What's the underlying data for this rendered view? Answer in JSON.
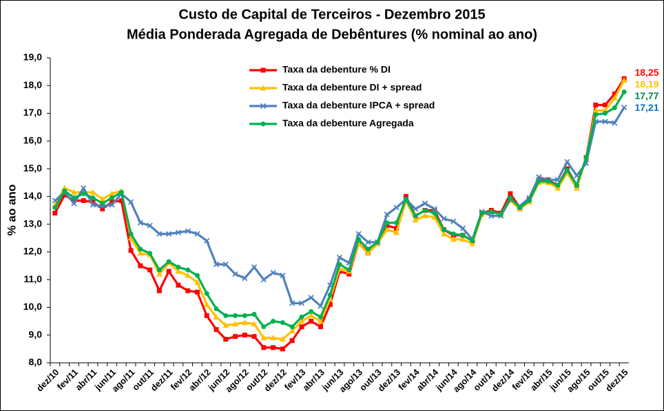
{
  "chart_data": {
    "type": "line",
    "title": "Custo de Capital de Terceiros - Dezembro 2015",
    "subtitle": "Média Ponderada Agregada de Debêntures (% nominal ao ano)",
    "y_label": "% ao ano",
    "categories": [
      "dez/10",
      null,
      "fev/11",
      null,
      "abr/11",
      null,
      "jun/11",
      null,
      "ago/11",
      null,
      "out/11",
      null,
      "dez/11",
      null,
      "fev/12",
      null,
      "abr/12",
      null,
      "jun/12",
      null,
      "ago/12",
      null,
      "out/12",
      null,
      "dez/12",
      null,
      "fev/13",
      null,
      "abr/13",
      null,
      "jun/13",
      null,
      "ago/13",
      null,
      "out/13",
      null,
      "dez/13",
      null,
      "fev/14",
      null,
      "abr/14",
      null,
      "jun/14",
      null,
      "ago/14",
      null,
      "out/14",
      null,
      "dez/14",
      null,
      "fev/15",
      null,
      "abr/15",
      null,
      "jun/15",
      null,
      "ago/15",
      null,
      "out/15",
      null,
      "dez/15"
    ],
    "ylim": [
      8,
      19
    ],
    "yticks": [
      {
        "value": 8,
        "label": "8,0"
      },
      {
        "value": 9,
        "label": "9,0"
      },
      {
        "value": 10,
        "label": "10,0"
      },
      {
        "value": 11,
        "label": "11,0"
      },
      {
        "value": 12,
        "label": "12,0"
      },
      {
        "value": 13,
        "label": "13,0"
      },
      {
        "value": 14,
        "label": "14,0"
      },
      {
        "value": 15,
        "label": "15,0"
      },
      {
        "value": 16,
        "label": "16,0"
      },
      {
        "value": 17,
        "label": "17,0"
      },
      {
        "value": 18,
        "label": "18,0"
      },
      {
        "value": 19,
        "label": "19,0"
      }
    ],
    "grid": false,
    "legend": "top",
    "series": [
      {
        "name": "Taxa da debenture % DI",
        "color": "#ff0000",
        "label_color": "#ff0000",
        "marker": "square",
        "values": [
          13.4,
          14.05,
          13.85,
          13.85,
          13.8,
          13.55,
          13.8,
          13.85,
          12.05,
          11.5,
          11.35,
          10.6,
          11.3,
          10.8,
          10.6,
          10.55,
          9.7,
          9.2,
          8.85,
          8.95,
          9.0,
          8.95,
          8.55,
          8.55,
          8.5,
          8.8,
          9.3,
          9.5,
          9.3,
          10.1,
          11.3,
          11.2,
          12.3,
          12.0,
          12.3,
          12.95,
          12.85,
          14.0,
          13.3,
          13.5,
          13.5,
          12.8,
          12.6,
          12.6,
          12.4,
          13.4,
          13.5,
          13.4,
          14.1,
          13.6,
          13.9,
          14.6,
          14.6,
          14.4,
          15.0,
          14.4,
          15.4,
          17.3,
          17.3,
          17.7,
          18.25
        ],
        "value_labels": [
          null,
          null,
          null,
          null,
          null,
          null,
          null,
          null,
          null,
          null,
          null,
          null,
          null,
          null,
          null,
          null,
          null,
          null,
          null,
          null,
          null,
          null,
          null,
          null,
          null,
          null,
          null,
          null,
          null,
          null,
          null,
          null,
          null,
          null,
          null,
          null,
          null,
          null,
          null,
          null,
          null,
          null,
          null,
          null,
          null,
          null,
          null,
          null,
          null,
          null,
          null,
          null,
          null,
          null,
          null,
          null,
          null,
          null,
          null,
          null,
          "18,25"
        ]
      },
      {
        "name": "Taxa da debenture DI + spread",
        "color": "#ffc000",
        "label_color": "#ffc000",
        "marker": "triangle",
        "values": [
          13.7,
          14.3,
          14.15,
          14.15,
          14.15,
          13.9,
          14.1,
          14.2,
          12.5,
          11.95,
          11.9,
          11.2,
          11.6,
          11.3,
          11.15,
          10.9,
          10.1,
          9.65,
          9.35,
          9.4,
          9.45,
          9.4,
          8.9,
          8.9,
          8.85,
          9.15,
          9.5,
          9.7,
          9.5,
          10.3,
          11.4,
          11.3,
          12.3,
          11.95,
          12.3,
          12.8,
          12.7,
          13.85,
          13.15,
          13.3,
          13.25,
          12.65,
          12.45,
          12.45,
          12.3,
          13.35,
          13.45,
          13.35,
          13.85,
          13.55,
          13.8,
          14.5,
          14.5,
          14.3,
          14.85,
          14.3,
          15.4,
          17.1,
          17.1,
          17.55,
          18.19
        ],
        "value_labels": [
          null,
          null,
          null,
          null,
          null,
          null,
          null,
          null,
          null,
          null,
          null,
          null,
          null,
          null,
          null,
          null,
          null,
          null,
          null,
          null,
          null,
          null,
          null,
          null,
          null,
          null,
          null,
          null,
          null,
          null,
          null,
          null,
          null,
          null,
          null,
          null,
          null,
          null,
          null,
          null,
          null,
          null,
          null,
          null,
          null,
          null,
          null,
          null,
          null,
          null,
          null,
          null,
          null,
          null,
          null,
          null,
          null,
          null,
          null,
          null,
          "18,19"
        ]
      },
      {
        "name": "Taxa da debenture IPCA + spread",
        "color": "#4f81bd",
        "label_color": "#0070c0",
        "marker": "x",
        "values": [
          13.85,
          14.15,
          13.75,
          14.3,
          13.7,
          13.65,
          13.7,
          14.1,
          13.8,
          13.05,
          12.95,
          12.65,
          12.65,
          12.7,
          12.75,
          12.65,
          12.4,
          11.55,
          11.55,
          11.2,
          11.05,
          11.45,
          11.0,
          11.25,
          11.15,
          10.15,
          10.15,
          10.35,
          10.05,
          10.8,
          11.8,
          11.6,
          12.65,
          12.35,
          12.35,
          13.35,
          13.6,
          13.9,
          13.55,
          13.75,
          13.55,
          13.2,
          13.1,
          12.85,
          12.45,
          13.45,
          13.3,
          13.3,
          13.9,
          13.65,
          13.95,
          14.7,
          14.6,
          14.6,
          15.25,
          14.75,
          15.2,
          16.7,
          16.7,
          16.65,
          17.21
        ],
        "value_labels": [
          null,
          null,
          null,
          null,
          null,
          null,
          null,
          null,
          null,
          null,
          null,
          null,
          null,
          null,
          null,
          null,
          null,
          null,
          null,
          null,
          null,
          null,
          null,
          null,
          null,
          null,
          null,
          null,
          null,
          null,
          null,
          null,
          null,
          null,
          null,
          null,
          null,
          null,
          null,
          null,
          null,
          null,
          null,
          null,
          null,
          null,
          null,
          null,
          null,
          null,
          null,
          null,
          null,
          null,
          null,
          null,
          null,
          null,
          null,
          null,
          "17,21"
        ]
      },
      {
        "name": "Taxa da debenture Agregada",
        "color": "#00b050",
        "label_color": "#00853e",
        "marker": "circle",
        "values": [
          13.6,
          14.2,
          13.95,
          14.1,
          13.95,
          13.75,
          13.95,
          14.15,
          12.65,
          12.1,
          11.95,
          11.35,
          11.65,
          11.45,
          11.35,
          11.15,
          10.5,
          9.95,
          9.7,
          9.7,
          9.7,
          9.75,
          9.3,
          9.5,
          9.45,
          9.3,
          9.65,
          9.85,
          9.65,
          10.45,
          11.55,
          11.35,
          12.45,
          12.1,
          12.35,
          13.05,
          13.05,
          13.9,
          13.3,
          13.5,
          13.4,
          12.8,
          12.65,
          12.6,
          12.4,
          13.4,
          13.45,
          13.35,
          13.95,
          13.6,
          13.85,
          14.55,
          14.55,
          14.4,
          14.95,
          14.4,
          15.4,
          16.95,
          17.0,
          17.2,
          17.77
        ],
        "value_labels": [
          null,
          null,
          null,
          null,
          null,
          null,
          null,
          null,
          null,
          null,
          null,
          null,
          null,
          null,
          null,
          null,
          null,
          null,
          null,
          null,
          null,
          null,
          null,
          null,
          null,
          null,
          null,
          null,
          null,
          null,
          null,
          null,
          null,
          null,
          null,
          null,
          null,
          null,
          null,
          null,
          null,
          null,
          null,
          null,
          null,
          null,
          null,
          null,
          null,
          null,
          null,
          null,
          null,
          null,
          null,
          null,
          null,
          null,
          null,
          null,
          "17,77"
        ]
      }
    ]
  }
}
